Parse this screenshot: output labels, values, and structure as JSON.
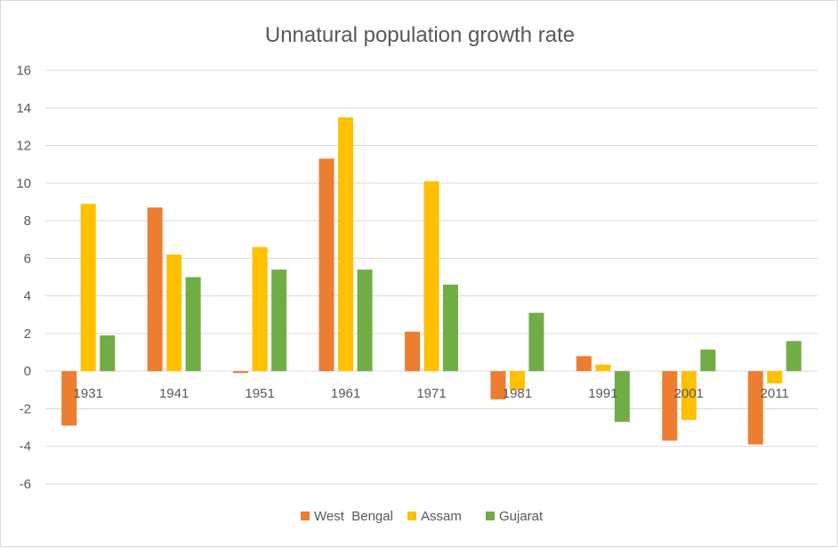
{
  "chart_data": {
    "type": "bar",
    "title": "Unnatural population growth rate",
    "xlabel": "",
    "ylabel": "",
    "ylim": [
      -6,
      16
    ],
    "yticks": [
      16,
      14,
      12,
      10,
      8,
      6,
      4,
      2,
      0,
      -2,
      -4,
      -6
    ],
    "grid": true,
    "legend_position": "bottom",
    "categories": [
      "1931",
      "1941",
      "1951",
      "1961",
      "1971",
      "1981",
      "1991",
      "2001",
      "2011"
    ],
    "series": [
      {
        "name": "West  Bengal",
        "color": "#ed7d31",
        "values": [
          -2.9,
          8.7,
          -0.1,
          11.3,
          2.1,
          -1.5,
          0.8,
          -3.7,
          -3.9
        ]
      },
      {
        "name": "Assam",
        "color": "#ffc000",
        "values": [
          8.9,
          6.2,
          6.6,
          13.5,
          10.1,
          -1.0,
          0.35,
          -2.6,
          -0.65
        ]
      },
      {
        "name": "Gujarat",
        "color": "#70ad47",
        "values": [
          1.9,
          5.0,
          5.4,
          5.4,
          4.6,
          3.1,
          -2.7,
          1.15,
          1.6
        ]
      }
    ],
    "colors": {
      "grid": "#d9d9d9",
      "text": "#595959"
    }
  }
}
